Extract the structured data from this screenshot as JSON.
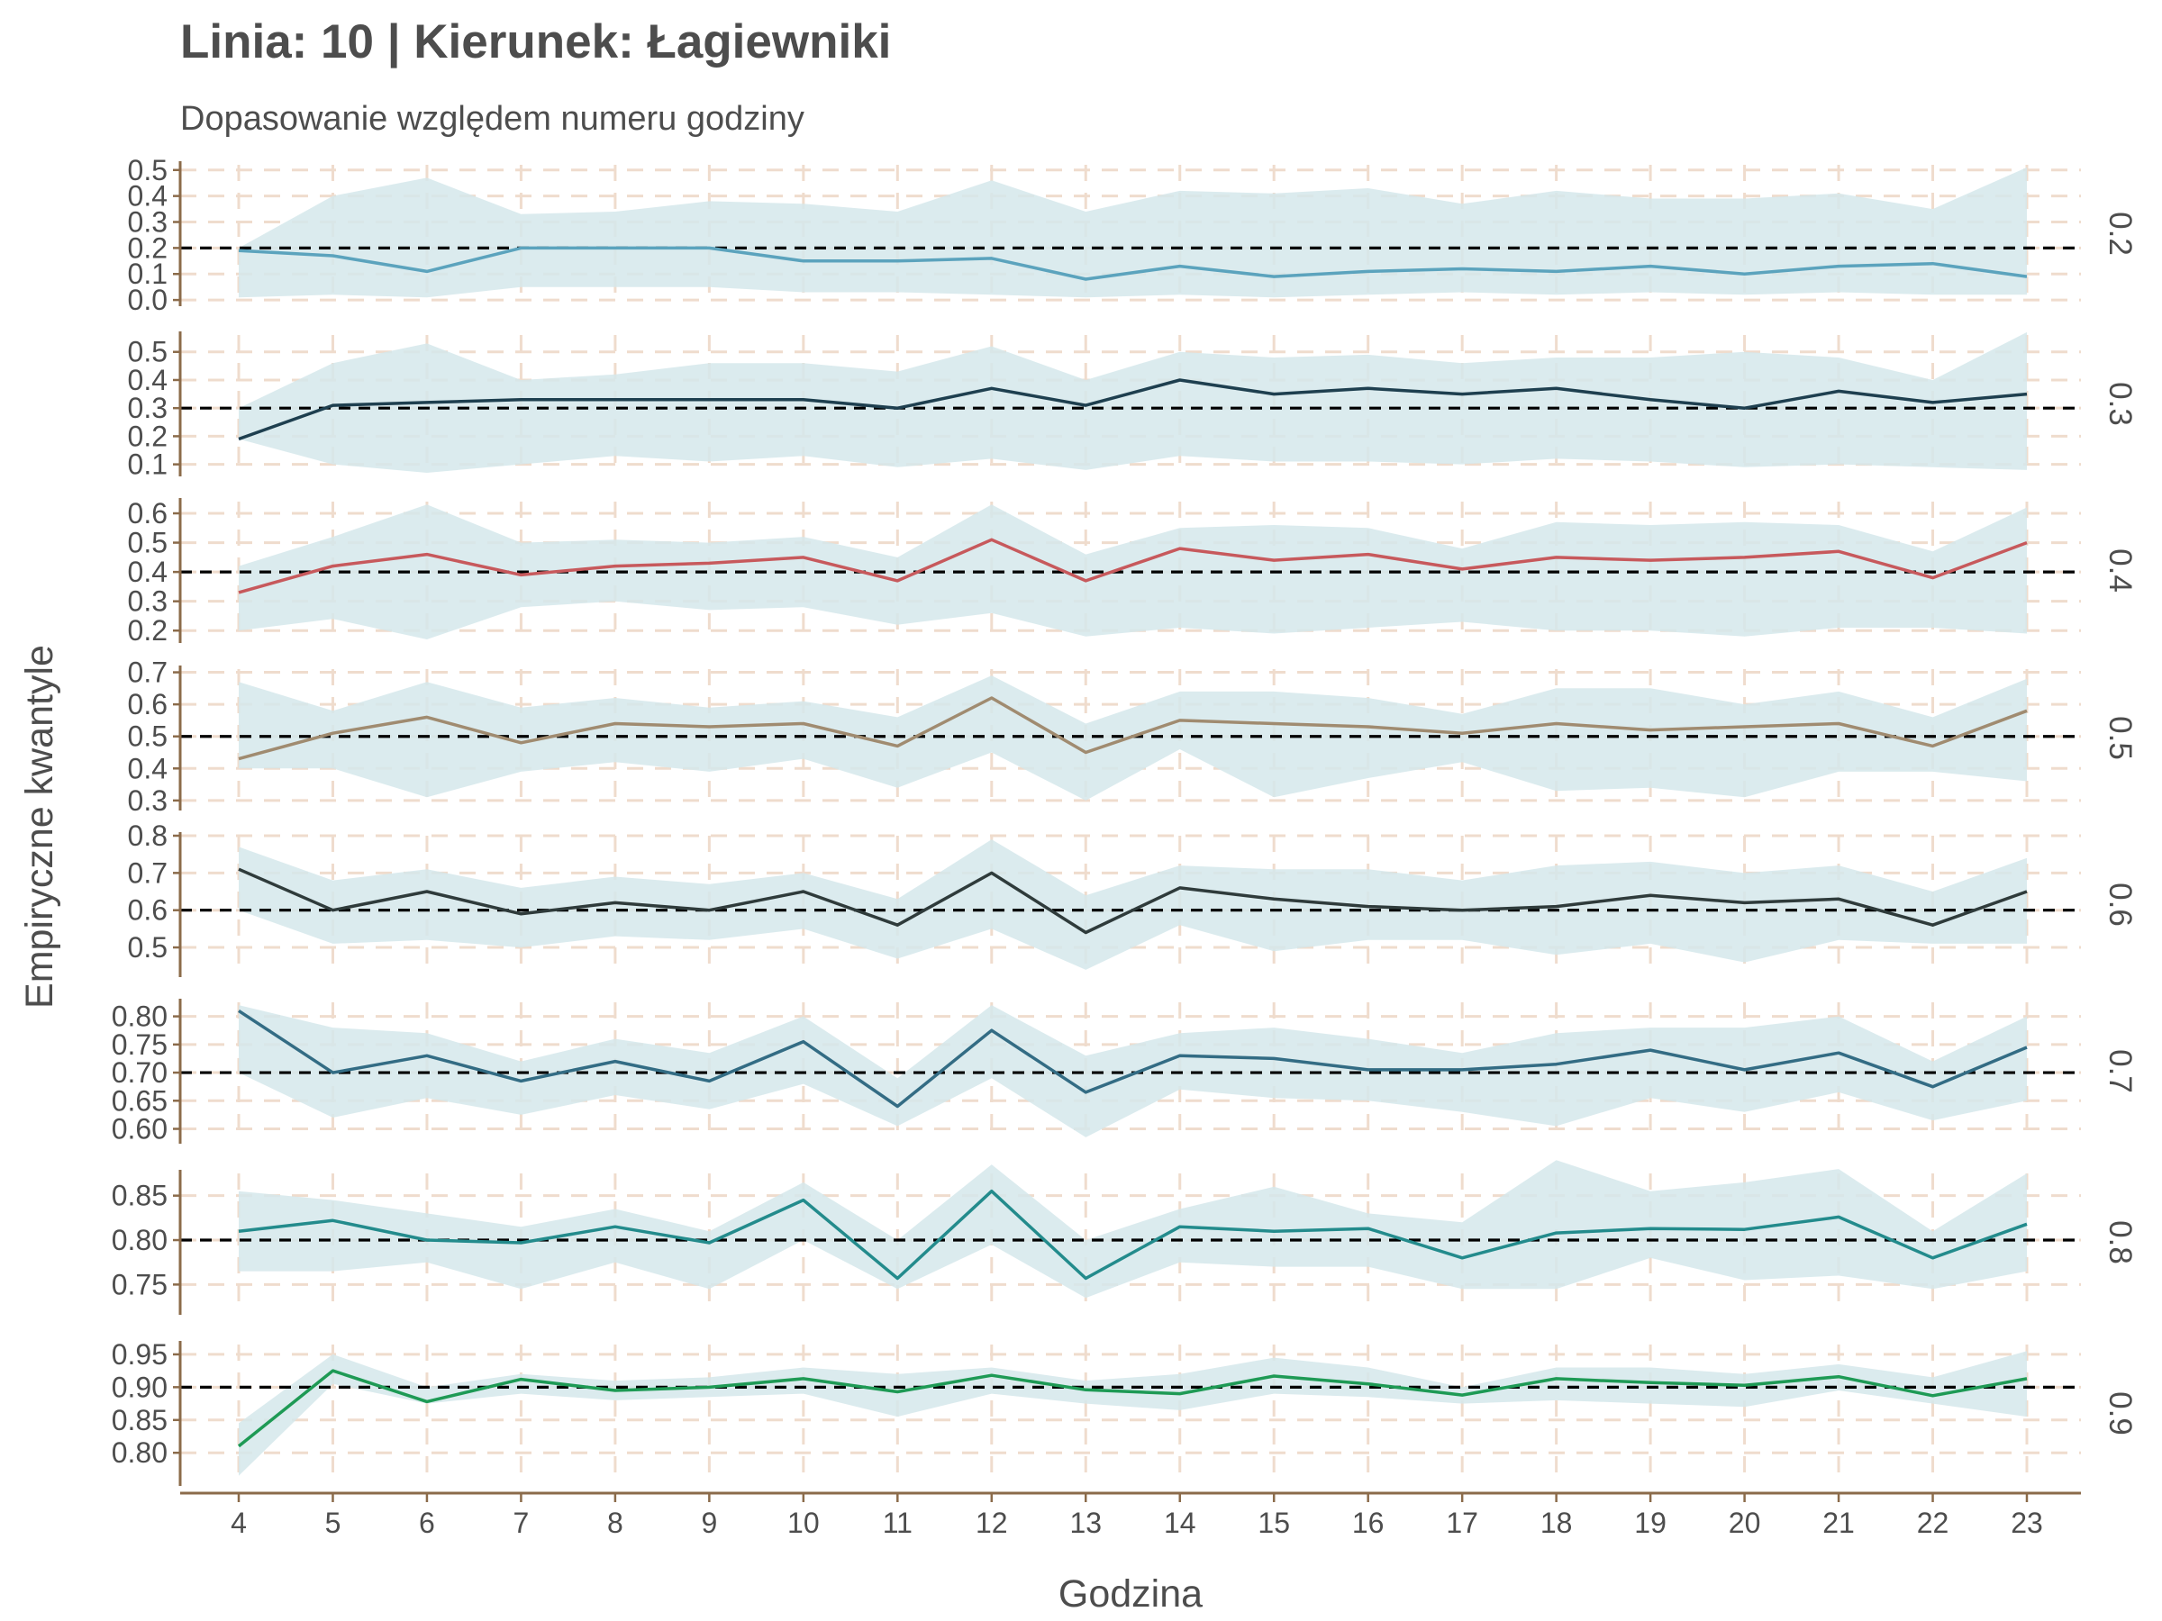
{
  "chart_data": {
    "type": "line",
    "title": "Linia: 10 | Kierunek: Łagiewniki",
    "subtitle": "Dopasowanie względem numeru godziny",
    "xlabel": "Godzina",
    "ylabel": "Empiryczne kwantyle",
    "x": [
      4,
      5,
      6,
      7,
      8,
      9,
      10,
      11,
      12,
      13,
      14,
      15,
      16,
      17,
      18,
      19,
      20,
      21,
      22,
      23
    ],
    "grid": "dashed",
    "colors": {
      "band": "#d5e8eb",
      "reference": "#000000",
      "grid": "#efdccd",
      "axis": "#8b6b4a"
    },
    "panels": [
      {
        "strip": "0.2",
        "reference": 0.2,
        "ylim": [
          -0.01,
          0.52
        ],
        "yticks": [
          "0.0",
          "0.1",
          "0.2",
          "0.3",
          "0.4",
          "0.5"
        ],
        "color": "#5ba3bd",
        "values": [
          0.19,
          0.17,
          0.11,
          0.2,
          0.2,
          0.2,
          0.15,
          0.15,
          0.16,
          0.08,
          0.13,
          0.09,
          0.11,
          0.12,
          0.11,
          0.13,
          0.1,
          0.13,
          0.14,
          0.09
        ],
        "lower": [
          0.01,
          0.02,
          0.01,
          0.05,
          0.05,
          0.05,
          0.03,
          0.03,
          0.02,
          0.01,
          0.02,
          0.01,
          0.02,
          0.03,
          0.02,
          0.03,
          0.02,
          0.03,
          0.02,
          0.02
        ],
        "upper": [
          0.2,
          0.4,
          0.47,
          0.33,
          0.34,
          0.38,
          0.37,
          0.34,
          0.46,
          0.34,
          0.42,
          0.41,
          0.43,
          0.37,
          0.42,
          0.39,
          0.39,
          0.41,
          0.35,
          0.51
        ]
      },
      {
        "strip": "0.3",
        "reference": 0.3,
        "ylim": [
          0.07,
          0.56
        ],
        "yticks": [
          "0.1",
          "0.2",
          "0.3",
          "0.4",
          "0.5"
        ],
        "color": "#1e3f4f",
        "values": [
          0.19,
          0.31,
          0.32,
          0.33,
          0.33,
          0.33,
          0.33,
          0.3,
          0.37,
          0.31,
          0.4,
          0.35,
          0.37,
          0.35,
          0.37,
          0.33,
          0.3,
          0.36,
          0.32,
          0.35
        ],
        "lower": [
          0.19,
          0.1,
          0.07,
          0.1,
          0.13,
          0.11,
          0.13,
          0.09,
          0.12,
          0.08,
          0.13,
          0.11,
          0.11,
          0.1,
          0.12,
          0.11,
          0.09,
          0.1,
          0.09,
          0.08
        ],
        "upper": [
          0.3,
          0.46,
          0.53,
          0.4,
          0.42,
          0.46,
          0.46,
          0.43,
          0.52,
          0.4,
          0.5,
          0.48,
          0.49,
          0.46,
          0.48,
          0.48,
          0.5,
          0.48,
          0.4,
          0.57
        ]
      },
      {
        "strip": "0.4",
        "reference": 0.4,
        "ylim": [
          0.17,
          0.64
        ],
        "yticks": [
          "0.2",
          "0.3",
          "0.4",
          "0.5",
          "0.6"
        ],
        "color": "#c7595c",
        "values": [
          0.33,
          0.42,
          0.46,
          0.39,
          0.42,
          0.43,
          0.45,
          0.37,
          0.51,
          0.37,
          0.48,
          0.44,
          0.46,
          0.41,
          0.45,
          0.44,
          0.45,
          0.47,
          0.38,
          0.5
        ],
        "lower": [
          0.2,
          0.24,
          0.17,
          0.28,
          0.3,
          0.27,
          0.28,
          0.22,
          0.26,
          0.18,
          0.21,
          0.19,
          0.21,
          0.23,
          0.2,
          0.2,
          0.18,
          0.21,
          0.21,
          0.19
        ],
        "upper": [
          0.42,
          0.52,
          0.63,
          0.5,
          0.51,
          0.5,
          0.52,
          0.45,
          0.63,
          0.46,
          0.55,
          0.56,
          0.55,
          0.48,
          0.57,
          0.56,
          0.57,
          0.56,
          0.47,
          0.62
        ]
      },
      {
        "strip": "0.5",
        "reference": 0.5,
        "ylim": [
          0.28,
          0.71
        ],
        "yticks": [
          "0.3",
          "0.4",
          "0.5",
          "0.6",
          "0.7"
        ],
        "color": "#a08b70",
        "values": [
          0.43,
          0.51,
          0.56,
          0.48,
          0.54,
          0.53,
          0.54,
          0.47,
          0.62,
          0.45,
          0.55,
          0.54,
          0.53,
          0.51,
          0.54,
          0.52,
          0.53,
          0.54,
          0.47,
          0.58
        ],
        "lower": [
          0.4,
          0.4,
          0.31,
          0.39,
          0.42,
          0.39,
          0.43,
          0.34,
          0.45,
          0.3,
          0.46,
          0.31,
          0.37,
          0.42,
          0.33,
          0.34,
          0.31,
          0.39,
          0.39,
          0.36
        ],
        "upper": [
          0.67,
          0.58,
          0.67,
          0.59,
          0.62,
          0.59,
          0.61,
          0.56,
          0.69,
          0.54,
          0.64,
          0.64,
          0.62,
          0.57,
          0.65,
          0.65,
          0.6,
          0.64,
          0.56,
          0.68
        ]
      },
      {
        "strip": "0.6",
        "reference": 0.6,
        "ylim": [
          0.43,
          0.8
        ],
        "yticks": [
          "0.5",
          "0.6",
          "0.7",
          "0.8"
        ],
        "color": "#2f3b3b",
        "values": [
          0.71,
          0.6,
          0.65,
          0.59,
          0.62,
          0.6,
          0.65,
          0.56,
          0.7,
          0.54,
          0.66,
          0.63,
          0.61,
          0.6,
          0.61,
          0.64,
          0.62,
          0.63,
          0.56,
          0.65
        ],
        "lower": [
          0.6,
          0.51,
          0.52,
          0.5,
          0.53,
          0.52,
          0.55,
          0.47,
          0.55,
          0.44,
          0.56,
          0.49,
          0.52,
          0.52,
          0.48,
          0.51,
          0.46,
          0.52,
          0.51,
          0.51
        ],
        "upper": [
          0.77,
          0.68,
          0.71,
          0.66,
          0.69,
          0.67,
          0.7,
          0.63,
          0.79,
          0.64,
          0.72,
          0.71,
          0.71,
          0.68,
          0.72,
          0.73,
          0.7,
          0.72,
          0.65,
          0.74
        ]
      },
      {
        "strip": "0.7",
        "reference": 0.7,
        "ylim": [
          0.58,
          0.825
        ],
        "yticks": [
          "0.60",
          "0.65",
          "0.70",
          "0.75",
          "0.80"
        ],
        "color": "#336c84",
        "values": [
          0.81,
          0.7,
          0.73,
          0.685,
          0.72,
          0.685,
          0.755,
          0.64,
          0.775,
          0.665,
          0.73,
          0.725,
          0.705,
          0.705,
          0.715,
          0.74,
          0.705,
          0.735,
          0.675,
          0.745
        ],
        "lower": [
          0.7,
          0.62,
          0.655,
          0.625,
          0.66,
          0.635,
          0.68,
          0.605,
          0.69,
          0.585,
          0.67,
          0.655,
          0.65,
          0.63,
          0.605,
          0.655,
          0.63,
          0.665,
          0.615,
          0.65
        ],
        "upper": [
          0.82,
          0.78,
          0.77,
          0.72,
          0.76,
          0.735,
          0.8,
          0.69,
          0.82,
          0.73,
          0.77,
          0.78,
          0.76,
          0.735,
          0.77,
          0.78,
          0.78,
          0.8,
          0.72,
          0.8
        ]
      },
      {
        "strip": "0.8",
        "reference": 0.8,
        "ylim": [
          0.72,
          0.875
        ],
        "yticks": [
          "0.75",
          "0.80",
          "0.85"
        ],
        "color": "#238b8c",
        "values": [
          0.81,
          0.822,
          0.8,
          0.797,
          0.815,
          0.797,
          0.845,
          0.757,
          0.855,
          0.757,
          0.815,
          0.81,
          0.813,
          0.78,
          0.808,
          0.813,
          0.812,
          0.826,
          0.78,
          0.818
        ],
        "lower": [
          0.765,
          0.765,
          0.775,
          0.745,
          0.775,
          0.745,
          0.8,
          0.745,
          0.795,
          0.735,
          0.775,
          0.77,
          0.77,
          0.745,
          0.745,
          0.78,
          0.755,
          0.76,
          0.745,
          0.765
        ],
        "upper": [
          0.855,
          0.845,
          0.83,
          0.815,
          0.835,
          0.81,
          0.865,
          0.8,
          0.885,
          0.8,
          0.835,
          0.86,
          0.83,
          0.82,
          0.89,
          0.855,
          0.865,
          0.88,
          0.81,
          0.875
        ]
      },
      {
        "strip": "0.9",
        "reference": 0.9,
        "ylim": [
          0.755,
          0.965
        ],
        "yticks": [
          "0.80",
          "0.85",
          "0.90",
          "0.95"
        ],
        "color": "#1e9a55",
        "values": [
          0.81,
          0.925,
          0.878,
          0.912,
          0.895,
          0.9,
          0.913,
          0.893,
          0.918,
          0.896,
          0.89,
          0.917,
          0.905,
          0.888,
          0.913,
          0.907,
          0.903,
          0.916,
          0.887,
          0.913
        ],
        "lower": [
          0.765,
          0.905,
          0.875,
          0.89,
          0.88,
          0.885,
          0.89,
          0.855,
          0.89,
          0.875,
          0.865,
          0.89,
          0.885,
          0.875,
          0.88,
          0.875,
          0.87,
          0.895,
          0.875,
          0.855
        ],
        "upper": [
          0.845,
          0.95,
          0.9,
          0.92,
          0.91,
          0.915,
          0.93,
          0.92,
          0.93,
          0.91,
          0.92,
          0.945,
          0.93,
          0.9,
          0.93,
          0.93,
          0.92,
          0.935,
          0.915,
          0.955
        ]
      }
    ]
  }
}
